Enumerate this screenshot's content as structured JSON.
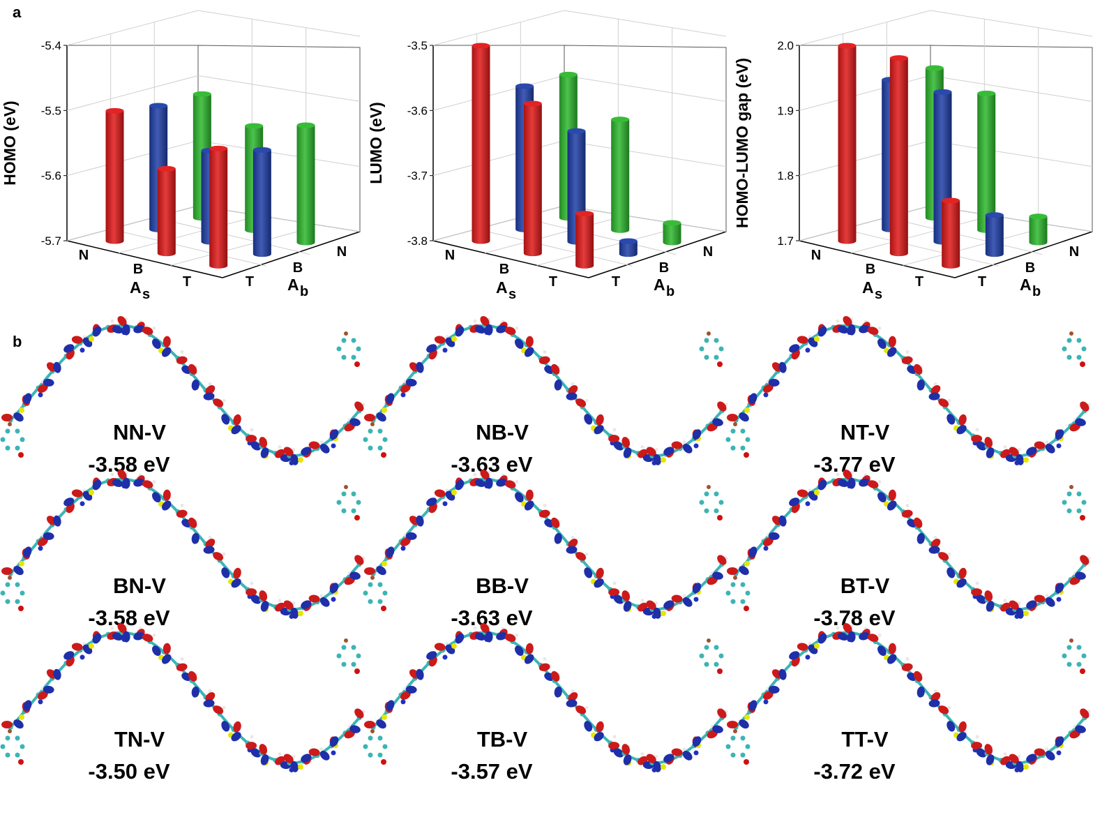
{
  "panel_a_label": "a",
  "panel_b_label": "b",
  "colors": {
    "N": "#2db82d",
    "B": "#1f3fa8",
    "T": "#e01818",
    "atom_C": "#3cb4b4",
    "atom_S": "#e6e600",
    "atom_N": "#2030c0",
    "atom_O": "#d01010",
    "atom_H": "#e8e8e8",
    "atom_Br": "#a0522d"
  },
  "chart_data": [
    {
      "type": "bar3d",
      "ylabel": "HOMO (eV)",
      "ylim": [
        -5.7,
        -5.4
      ],
      "yticks": [
        "-5.4",
        "-5.5",
        "-5.6",
        "-5.7"
      ],
      "as_label": "A",
      "as_sub": "s",
      "ab_label": "A",
      "ab_sub": "b",
      "as_categories": [
        "N",
        "B",
        "T"
      ],
      "ab_categories": [
        "N",
        "B",
        "T"
      ],
      "series": [
        {
          "as": "N",
          "values": {
            "N": -5.51,
            "B": -5.54,
            "T": -5.52
          }
        },
        {
          "as": "B",
          "values": {
            "N": -5.51,
            "B": -5.56,
            "T": -5.54
          }
        },
        {
          "as": "T",
          "values": {
            "N": -5.5,
            "B": -5.57,
            "T": -5.52
          }
        }
      ]
    },
    {
      "type": "bar3d",
      "ylabel": "LUMO (eV)",
      "ylim": [
        -3.8,
        -3.5
      ],
      "yticks": [
        "-3.5",
        "-3.6",
        "-3.7",
        "-3.8"
      ],
      "as_label": "A",
      "as_sub": "s",
      "ab_label": "A",
      "ab_sub": "b",
      "as_categories": [
        "N",
        "B",
        "T"
      ],
      "ab_categories": [
        "N",
        "B",
        "T"
      ],
      "series": [
        {
          "as": "N",
          "values": {
            "N": -3.58,
            "B": -3.63,
            "T": -3.77
          }
        },
        {
          "as": "B",
          "values": {
            "N": -3.58,
            "B": -3.63,
            "T": -3.78
          }
        },
        {
          "as": "T",
          "values": {
            "N": -3.5,
            "B": -3.57,
            "T": -3.72
          }
        }
      ]
    },
    {
      "type": "bar3d",
      "ylabel": "HOMO-LUMO gap (eV)",
      "ylim": [
        1.7,
        2.0
      ],
      "yticks": [
        "2.0",
        "1.9",
        "1.8",
        "1.7"
      ],
      "as_label": "A",
      "as_sub": "s",
      "ab_label": "A",
      "ab_sub": "b",
      "as_categories": [
        "N",
        "B",
        "T"
      ],
      "ab_categories": [
        "N",
        "B",
        "T"
      ],
      "series": [
        {
          "as": "N",
          "values": {
            "N": 1.93,
            "B": 1.91,
            "T": 1.74
          }
        },
        {
          "as": "B",
          "values": {
            "N": 1.93,
            "B": 1.93,
            "T": 1.76
          }
        },
        {
          "as": "T",
          "values": {
            "N": 2.0,
            "B": 2.0,
            "T": 1.8
          }
        }
      ]
    }
  ],
  "molecules": [
    {
      "name": "NN-V",
      "energy": "-3.58 eV"
    },
    {
      "name": "NB-V",
      "energy": "-3.63 eV"
    },
    {
      "name": "NT-V",
      "energy": "-3.77 eV"
    },
    {
      "name": "BN-V",
      "energy": "-3.58 eV"
    },
    {
      "name": "BB-V",
      "energy": "-3.63 eV"
    },
    {
      "name": "BT-V",
      "energy": "-3.78 eV"
    },
    {
      "name": "TN-V",
      "energy": "-3.50 eV"
    },
    {
      "name": "TB-V",
      "energy": "-3.57 eV"
    },
    {
      "name": "TT-V",
      "energy": "-3.72 eV"
    }
  ]
}
